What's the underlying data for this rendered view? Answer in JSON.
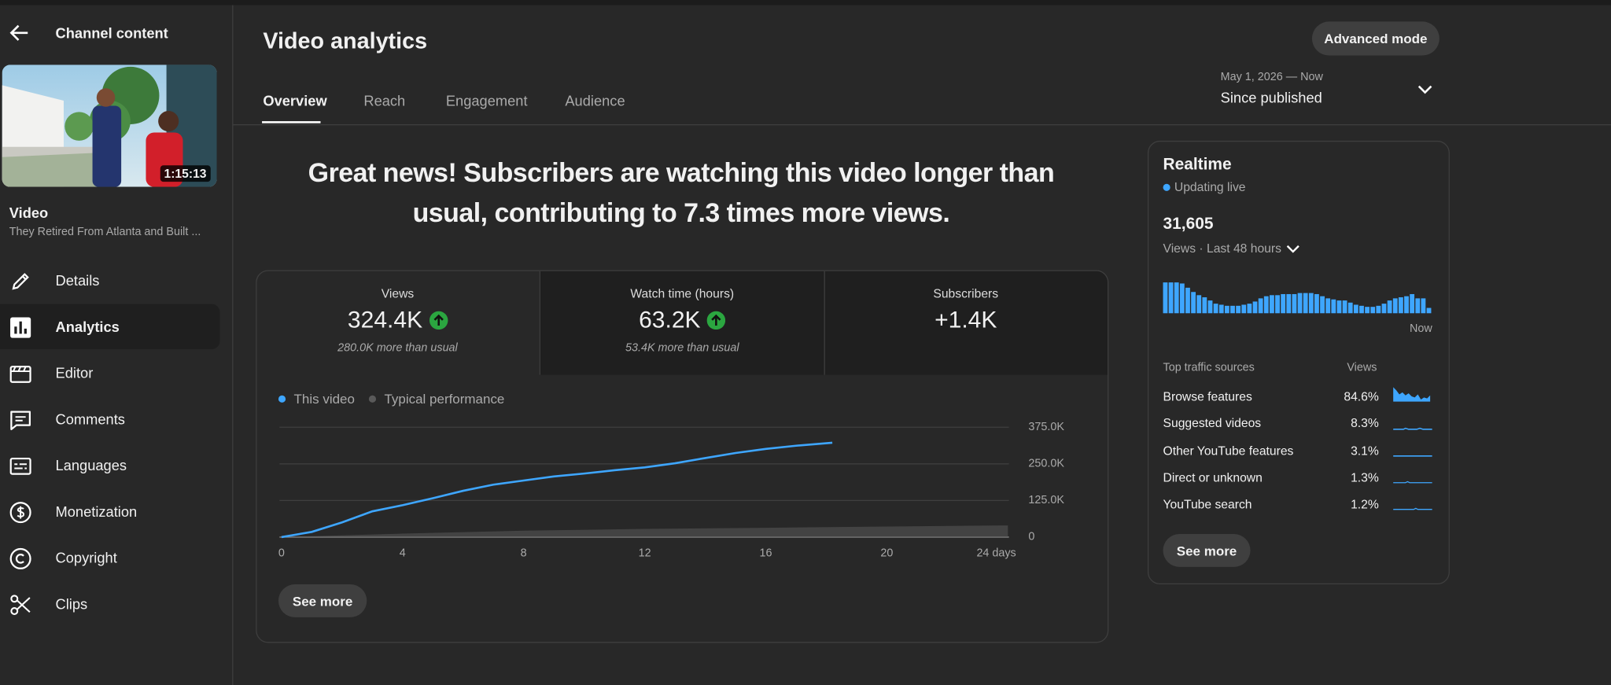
{
  "sidebar": {
    "title": "Channel content",
    "thumbnail_duration": "1:15:13",
    "video_label": "Video",
    "video_title": "They Retired From Atlanta and Built ...",
    "nav": [
      "Details",
      "Analytics",
      "Editor",
      "Comments",
      "Languages",
      "Monetization",
      "Copyright",
      "Clips"
    ]
  },
  "header": {
    "title": "Video analytics",
    "button": "Advanced mode",
    "tabs": [
      "Overview",
      "Reach",
      "Engagement",
      "Audience"
    ],
    "date_range": "May 1, 2026 — Now",
    "period": "Since published"
  },
  "insight": "Great news! Subscribers are watching this video longer than usual, contributing to 7.3 times more views.",
  "metrics": [
    {
      "label": "Views",
      "value": "324.4K",
      "note": "280.0K more than usual"
    },
    {
      "label": "Watch time (hours)",
      "value": "63.2K",
      "note": "53.4K more than usual"
    },
    {
      "label": "Subscribers",
      "value": "+1.4K"
    }
  ],
  "chart_data": {
    "type": "line",
    "series": [
      {
        "name": "This video",
        "color": "#3ea6ff",
        "x": [
          0,
          1,
          2,
          3,
          4,
          5,
          6,
          7,
          8,
          9,
          10,
          11,
          12,
          13,
          14,
          15,
          16,
          17,
          18.2
        ],
        "values": [
          0,
          18000,
          50000,
          88000,
          109000,
          133000,
          158000,
          179000,
          193000,
          207000,
          217000,
          228000,
          238000,
          252000,
          270000,
          287000,
          301000,
          312000,
          322000
        ]
      },
      {
        "name": "Typical performance",
        "color": "#5a5a5a",
        "x": [
          0,
          4,
          8,
          12,
          16,
          20,
          24
        ],
        "values": [
          0,
          12000,
          22000,
          28000,
          32000,
          36000,
          40000
        ]
      }
    ],
    "xlim": [
      0,
      24
    ],
    "xticks": [
      0,
      4,
      8,
      12,
      16,
      20,
      {
        "value": 24,
        "label": "24 days"
      }
    ],
    "ylim": [
      0,
      375000
    ],
    "yticks": [
      0,
      {
        "value": 125000,
        "label": "125.0K"
      },
      {
        "value": 250000,
        "label": "250.0K"
      },
      {
        "value": 375000,
        "label": "375.0K"
      }
    ],
    "grid": true
  },
  "see_more": "See more",
  "realtime": {
    "title": "Realtime",
    "status": "Updating live",
    "total": "31,605",
    "period": "Views · Last 48 hours",
    "now_label": "Now",
    "chart": {
      "type": "bar",
      "color": "#3ea6ff",
      "values": [
        1450,
        1450,
        1450,
        1400,
        1200,
        1000,
        850,
        750,
        600,
        450,
        400,
        350,
        350,
        350,
        400,
        450,
        550,
        700,
        800,
        850,
        850,
        900,
        900,
        900,
        950,
        950,
        950,
        900,
        800,
        700,
        650,
        600,
        600,
        500,
        400,
        350,
        300,
        300,
        350,
        450,
        600,
        700,
        750,
        800,
        900,
        700,
        700,
        250
      ]
    },
    "traffic": {
      "header": "Top traffic sources",
      "views_header": "Views",
      "rows": [
        {
          "source": "Browse features",
          "share": "84.6%"
        },
        {
          "source": "Suggested videos",
          "share": "8.3%"
        },
        {
          "source": "Other YouTube features",
          "share": "3.1%"
        },
        {
          "source": "Direct or unknown",
          "share": "1.3%"
        },
        {
          "source": "YouTube search",
          "share": "1.2%"
        }
      ]
    },
    "see_more": "See more"
  }
}
